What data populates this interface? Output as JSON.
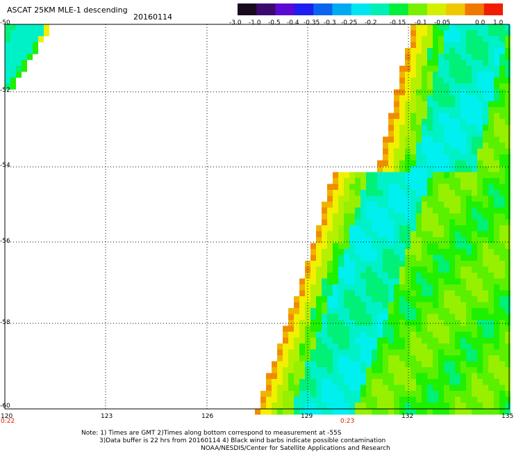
{
  "header": {
    "title": "ASCAT 25KM MLE-1 descending",
    "date": "20160114"
  },
  "colorbar": {
    "labels": [
      "-3.0",
      "-1.0",
      "-0.5",
      "-0.4",
      "-0.35",
      "-0.3",
      "-0.25",
      "-0.2",
      "-0.15",
      "-0.1",
      "-0.05",
      "0.0",
      "1.0"
    ],
    "colors": [
      "#1a0a1e",
      "#3c0a6e",
      "#5a0ad2",
      "#1e1ef0",
      "#0a64f0",
      "#00aaf0",
      "#00e6f0",
      "#00f0b4",
      "#00f03c",
      "#78f000",
      "#d2f000",
      "#f0c800",
      "#f07800",
      "#f01e00"
    ]
  },
  "axes": {
    "lat_labels": [
      "-50",
      "-52",
      "-54",
      "-56",
      "-58",
      "-60"
    ],
    "lon_labels": [
      "120",
      "123",
      "126",
      "129",
      "132",
      "135"
    ]
  },
  "times": {
    "left": "0:22",
    "center": "0:23"
  },
  "notes": {
    "line1": "Note: 1) Times are GMT 2)Times along bottom correspond to measurement at -55S",
    "line2": "3)Data buffer is 22 hrs from 20160114 4) Black wind barbs indicate possible contamination",
    "line3": "NOAA/NESDIS/Center for Satellite Applications and Research"
  }
}
